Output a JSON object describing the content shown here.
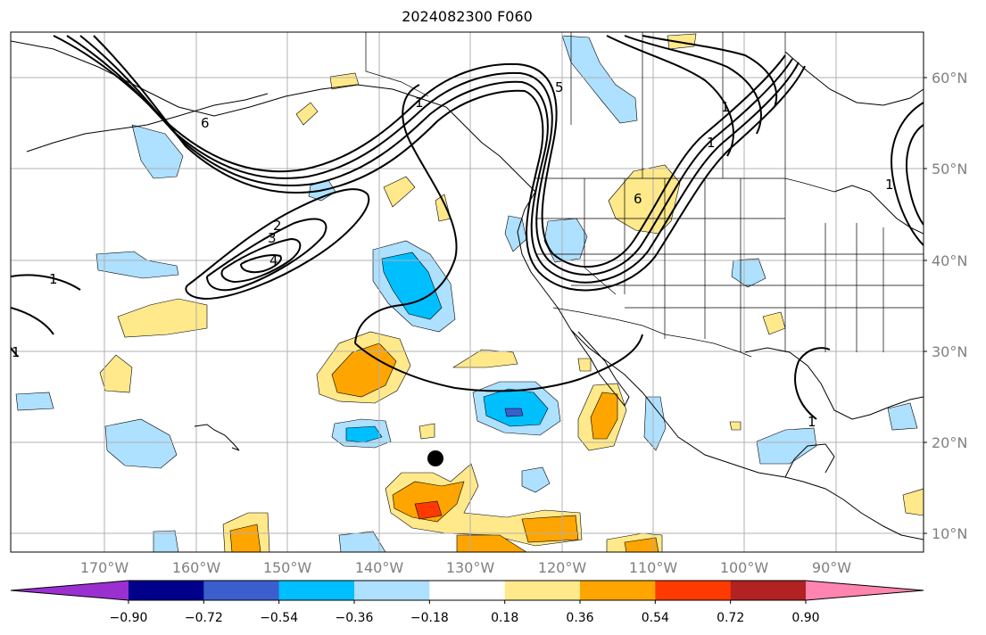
{
  "title": "2024082300 F060",
  "lat_labels": [
    "60°N",
    "50°N",
    "40°N",
    "30°N",
    "20°N",
    "10°N"
  ],
  "lon_labels": [
    "170°W",
    "160°W",
    "150°W",
    "140°W",
    "130°W",
    "120°W",
    "110°W",
    "100°W",
    "90°W"
  ],
  "colorbar": {
    "colors": [
      "#9b30d0",
      "#00008b",
      "#3a5fcd",
      "#00bfff",
      "#aee0ff",
      "#ffffff",
      "#ffe98a",
      "#ffa500",
      "#ff3a00",
      "#b22222",
      "#ff85b0"
    ],
    "tick_labels": [
      "−0.90",
      "−0.72",
      "−0.54",
      "−0.36",
      "−0.18",
      "0.18",
      "0.36",
      "0.54",
      "0.72",
      "0.90"
    ]
  },
  "contour_labels": [
    "6",
    "5",
    "1",
    "2",
    "3",
    "4",
    "1",
    "1",
    "6",
    "1",
    "1",
    "1",
    "1"
  ],
  "marker": "black-dot"
}
